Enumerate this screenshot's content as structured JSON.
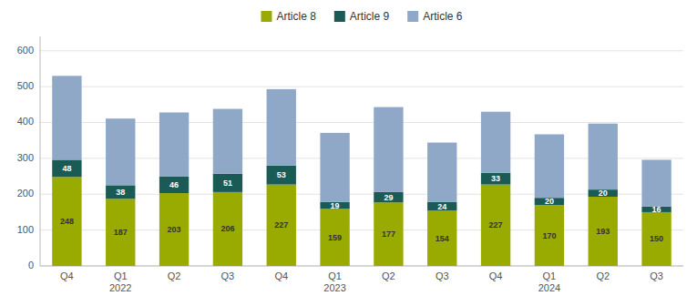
{
  "chart_data": {
    "type": "bar",
    "stacked": true,
    "categories": [
      "Q4",
      "Q1\n2022",
      "Q2",
      "Q3",
      "Q4",
      "Q1\n2023",
      "Q2",
      "Q3",
      "Q4",
      "Q1\n2024",
      "Q2",
      "Q3"
    ],
    "series": [
      {
        "name": "Article 8",
        "color": "#99aa00",
        "data_labels": true,
        "values": [
          248,
          187,
          203,
          206,
          227,
          159,
          177,
          154,
          227,
          170,
          193,
          150
        ]
      },
      {
        "name": "Article 9",
        "color": "#1a5c55",
        "data_labels": true,
        "values": [
          48,
          38,
          46,
          51,
          53,
          19,
          29,
          24,
          33,
          20,
          20,
          16
        ]
      },
      {
        "name": "Article 6",
        "color": "#8fa8c8",
        "data_labels": false,
        "values": [
          234,
          186,
          179,
          181,
          213,
          193,
          237,
          166,
          170,
          177,
          184,
          130
        ]
      }
    ],
    "ylim": [
      0,
      640
    ],
    "yticks": [
      0,
      100,
      200,
      300,
      400,
      500,
      600
    ],
    "grid": true,
    "legend": "top"
  }
}
